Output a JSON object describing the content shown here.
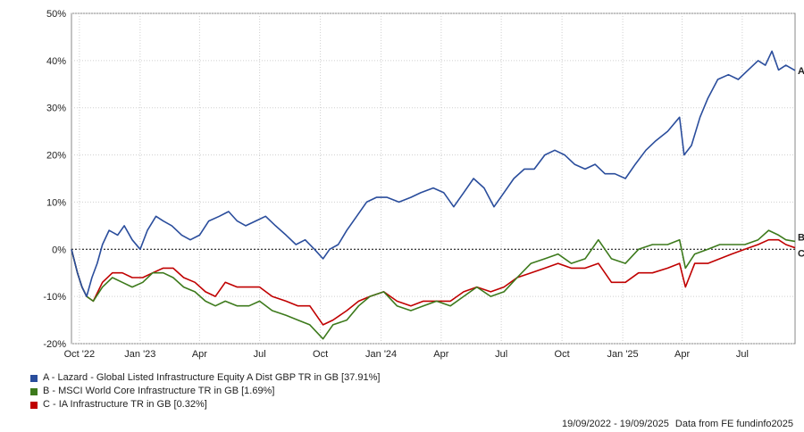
{
  "chart_data": {
    "type": "line",
    "ylim": [
      -20,
      50
    ],
    "yticks": [
      -20,
      -10,
      0,
      10,
      20,
      30,
      40,
      50
    ],
    "ytick_labels": [
      "-20%",
      "-10%",
      "0%",
      "10%",
      "20%",
      "30%",
      "40%",
      "50%"
    ],
    "xlim": [
      "2022-09-19",
      "2025-09-19"
    ],
    "xticks": [
      {
        "date": "2022-10-01",
        "label": "Oct '22"
      },
      {
        "date": "2023-01-01",
        "label": "Jan '23"
      },
      {
        "date": "2023-04-01",
        "label": "Apr"
      },
      {
        "date": "2023-07-01",
        "label": "Jul"
      },
      {
        "date": "2023-10-01",
        "label": "Oct"
      },
      {
        "date": "2024-01-01",
        "label": "Jan '24"
      },
      {
        "date": "2024-04-01",
        "label": "Apr"
      },
      {
        "date": "2024-07-01",
        "label": "Jul"
      },
      {
        "date": "2024-10-01",
        "label": "Oct"
      },
      {
        "date": "2025-01-01",
        "label": "Jan '25"
      },
      {
        "date": "2025-04-01",
        "label": "Apr"
      },
      {
        "date": "2025-07-01",
        "label": "Jul"
      }
    ],
    "grid": true,
    "zero_line": "dashed",
    "legend_position": "bottom-left",
    "series": [
      {
        "name": "A - Lazard - Global Listed Infrastructure Equity A Dist GBP TR in GB [37.91%]",
        "end_label": "A",
        "color": "#2a4d9c",
        "points": [
          [
            "2022-09-19",
            0
          ],
          [
            "2022-09-28",
            -5
          ],
          [
            "2022-10-05",
            -8
          ],
          [
            "2022-10-12",
            -10
          ],
          [
            "2022-10-20",
            -6
          ],
          [
            "2022-10-28",
            -3
          ],
          [
            "2022-11-05",
            1
          ],
          [
            "2022-11-15",
            4
          ],
          [
            "2022-11-28",
            3
          ],
          [
            "2022-12-08",
            5
          ],
          [
            "2022-12-20",
            2
          ],
          [
            "2023-01-01",
            0
          ],
          [
            "2023-01-12",
            4
          ],
          [
            "2023-01-25",
            7
          ],
          [
            "2023-02-05",
            6
          ],
          [
            "2023-02-18",
            5
          ],
          [
            "2023-03-05",
            3
          ],
          [
            "2023-03-18",
            2
          ],
          [
            "2023-04-01",
            3
          ],
          [
            "2023-04-15",
            6
          ],
          [
            "2023-05-01",
            7
          ],
          [
            "2023-05-15",
            8
          ],
          [
            "2023-05-28",
            6
          ],
          [
            "2023-06-10",
            5
          ],
          [
            "2023-06-25",
            6
          ],
          [
            "2023-07-10",
            7
          ],
          [
            "2023-07-25",
            5
          ],
          [
            "2023-08-10",
            3
          ],
          [
            "2023-08-25",
            1
          ],
          [
            "2023-09-08",
            2
          ],
          [
            "2023-09-22",
            0
          ],
          [
            "2023-10-05",
            -2
          ],
          [
            "2023-10-15",
            0
          ],
          [
            "2023-10-28",
            1
          ],
          [
            "2023-11-10",
            4
          ],
          [
            "2023-11-25",
            7
          ],
          [
            "2023-12-10",
            10
          ],
          [
            "2023-12-25",
            11
          ],
          [
            "2024-01-10",
            11
          ],
          [
            "2024-01-28",
            10
          ],
          [
            "2024-02-15",
            11
          ],
          [
            "2024-03-01",
            12
          ],
          [
            "2024-03-20",
            13
          ],
          [
            "2024-04-05",
            12
          ],
          [
            "2024-04-20",
            9
          ],
          [
            "2024-05-05",
            12
          ],
          [
            "2024-05-20",
            15
          ],
          [
            "2024-06-05",
            13
          ],
          [
            "2024-06-20",
            9
          ],
          [
            "2024-07-05",
            12
          ],
          [
            "2024-07-20",
            15
          ],
          [
            "2024-08-05",
            17
          ],
          [
            "2024-08-20",
            17
          ],
          [
            "2024-09-05",
            20
          ],
          [
            "2024-09-20",
            21
          ],
          [
            "2024-10-05",
            20
          ],
          [
            "2024-10-20",
            18
          ],
          [
            "2024-11-05",
            17
          ],
          [
            "2024-11-20",
            18
          ],
          [
            "2024-12-05",
            16
          ],
          [
            "2024-12-20",
            16
          ],
          [
            "2025-01-05",
            15
          ],
          [
            "2025-01-20",
            18
          ],
          [
            "2025-02-05",
            21
          ],
          [
            "2025-02-20",
            23
          ],
          [
            "2025-03-10",
            25
          ],
          [
            "2025-03-28",
            28
          ],
          [
            "2025-04-04",
            20
          ],
          [
            "2025-04-15",
            22
          ],
          [
            "2025-04-28",
            28
          ],
          [
            "2025-05-10",
            32
          ],
          [
            "2025-05-25",
            36
          ],
          [
            "2025-06-10",
            37
          ],
          [
            "2025-06-25",
            36
          ],
          [
            "2025-07-10",
            38
          ],
          [
            "2025-07-25",
            40
          ],
          [
            "2025-08-05",
            39
          ],
          [
            "2025-08-15",
            42
          ],
          [
            "2025-08-25",
            38
          ],
          [
            "2025-09-05",
            39
          ],
          [
            "2025-09-19",
            37.91
          ]
        ]
      },
      {
        "name": "B - MSCI World Core Infrastructure TR in GB [1.69%]",
        "end_label": "B",
        "color": "#3d7a1c",
        "points": [
          [
            "2022-09-19",
            0
          ],
          [
            "2022-09-28",
            -5
          ],
          [
            "2022-10-05",
            -8
          ],
          [
            "2022-10-12",
            -10
          ],
          [
            "2022-10-22",
            -11
          ],
          [
            "2022-11-05",
            -8
          ],
          [
            "2022-11-20",
            -6
          ],
          [
            "2022-12-05",
            -7
          ],
          [
            "2022-12-20",
            -8
          ],
          [
            "2023-01-05",
            -7
          ],
          [
            "2023-01-20",
            -5
          ],
          [
            "2023-02-05",
            -5
          ],
          [
            "2023-02-20",
            -6
          ],
          [
            "2023-03-08",
            -8
          ],
          [
            "2023-03-25",
            -9
          ],
          [
            "2023-04-10",
            -11
          ],
          [
            "2023-04-25",
            -12
          ],
          [
            "2023-05-10",
            -11
          ],
          [
            "2023-05-28",
            -12
          ],
          [
            "2023-06-15",
            -12
          ],
          [
            "2023-07-01",
            -11
          ],
          [
            "2023-07-20",
            -13
          ],
          [
            "2023-08-10",
            -14
          ],
          [
            "2023-08-28",
            -15
          ],
          [
            "2023-09-15",
            -16
          ],
          [
            "2023-10-05",
            -19
          ],
          [
            "2023-10-20",
            -16
          ],
          [
            "2023-11-10",
            -15
          ],
          [
            "2023-11-28",
            -12
          ],
          [
            "2023-12-15",
            -10
          ],
          [
            "2024-01-05",
            -9
          ],
          [
            "2024-01-25",
            -12
          ],
          [
            "2024-02-15",
            -13
          ],
          [
            "2024-03-05",
            -12
          ],
          [
            "2024-03-25",
            -11
          ],
          [
            "2024-04-15",
            -12
          ],
          [
            "2024-05-05",
            -10
          ],
          [
            "2024-05-25",
            -8
          ],
          [
            "2024-06-15",
            -10
          ],
          [
            "2024-07-05",
            -9
          ],
          [
            "2024-07-25",
            -6
          ],
          [
            "2024-08-15",
            -3
          ],
          [
            "2024-09-05",
            -2
          ],
          [
            "2024-09-25",
            -1
          ],
          [
            "2024-10-15",
            -3
          ],
          [
            "2024-11-05",
            -2
          ],
          [
            "2024-11-25",
            2
          ],
          [
            "2024-12-15",
            -2
          ],
          [
            "2025-01-05",
            -3
          ],
          [
            "2025-01-25",
            0
          ],
          [
            "2025-02-15",
            1
          ],
          [
            "2025-03-10",
            1
          ],
          [
            "2025-03-28",
            2
          ],
          [
            "2025-04-06",
            -4
          ],
          [
            "2025-04-20",
            -1
          ],
          [
            "2025-05-10",
            0
          ],
          [
            "2025-05-28",
            1
          ],
          [
            "2025-06-15",
            1
          ],
          [
            "2025-07-05",
            1
          ],
          [
            "2025-07-25",
            2
          ],
          [
            "2025-08-10",
            4
          ],
          [
            "2025-08-25",
            3
          ],
          [
            "2025-09-05",
            2
          ],
          [
            "2025-09-19",
            1.69
          ]
        ]
      },
      {
        "name": "C - IA Infrastructure TR in GB [0.32%]",
        "end_label": "C",
        "color": "#c00000",
        "points": [
          [
            "2022-09-19",
            0
          ],
          [
            "2022-09-28",
            -5
          ],
          [
            "2022-10-05",
            -8
          ],
          [
            "2022-10-12",
            -10
          ],
          [
            "2022-10-22",
            -11
          ],
          [
            "2022-11-05",
            -7
          ],
          [
            "2022-11-20",
            -5
          ],
          [
            "2022-12-05",
            -5
          ],
          [
            "2022-12-20",
            -6
          ],
          [
            "2023-01-05",
            -6
          ],
          [
            "2023-01-20",
            -5
          ],
          [
            "2023-02-05",
            -4
          ],
          [
            "2023-02-20",
            -4
          ],
          [
            "2023-03-08",
            -6
          ],
          [
            "2023-03-25",
            -7
          ],
          [
            "2023-04-10",
            -9
          ],
          [
            "2023-04-25",
            -10
          ],
          [
            "2023-05-10",
            -7
          ],
          [
            "2023-05-28",
            -8
          ],
          [
            "2023-06-15",
            -8
          ],
          [
            "2023-07-01",
            -8
          ],
          [
            "2023-07-20",
            -10
          ],
          [
            "2023-08-10",
            -11
          ],
          [
            "2023-08-28",
            -12
          ],
          [
            "2023-09-15",
            -12
          ],
          [
            "2023-10-05",
            -16
          ],
          [
            "2023-10-20",
            -15
          ],
          [
            "2023-11-10",
            -13
          ],
          [
            "2023-11-28",
            -11
          ],
          [
            "2023-12-15",
            -10
          ],
          [
            "2024-01-05",
            -9
          ],
          [
            "2024-01-25",
            -11
          ],
          [
            "2024-02-15",
            -12
          ],
          [
            "2024-03-05",
            -11
          ],
          [
            "2024-03-25",
            -11
          ],
          [
            "2024-04-15",
            -11
          ],
          [
            "2024-05-05",
            -9
          ],
          [
            "2024-05-25",
            -8
          ],
          [
            "2024-06-15",
            -9
          ],
          [
            "2024-07-05",
            -8
          ],
          [
            "2024-07-25",
            -6
          ],
          [
            "2024-08-15",
            -5
          ],
          [
            "2024-09-05",
            -4
          ],
          [
            "2024-09-25",
            -3
          ],
          [
            "2024-10-15",
            -4
          ],
          [
            "2024-11-05",
            -4
          ],
          [
            "2024-11-25",
            -3
          ],
          [
            "2024-12-15",
            -7
          ],
          [
            "2025-01-05",
            -7
          ],
          [
            "2025-01-25",
            -5
          ],
          [
            "2025-02-15",
            -5
          ],
          [
            "2025-03-10",
            -4
          ],
          [
            "2025-03-28",
            -3
          ],
          [
            "2025-04-06",
            -8
          ],
          [
            "2025-04-20",
            -3
          ],
          [
            "2025-05-10",
            -3
          ],
          [
            "2025-05-28",
            -2
          ],
          [
            "2025-06-15",
            -1
          ],
          [
            "2025-07-05",
            0
          ],
          [
            "2025-07-25",
            1
          ],
          [
            "2025-08-10",
            2
          ],
          [
            "2025-08-25",
            2
          ],
          [
            "2025-09-05",
            1
          ],
          [
            "2025-09-19",
            0.32
          ]
        ]
      }
    ]
  },
  "legend": [
    {
      "label": "A - Lazard - Global Listed Infrastructure Equity A Dist GBP TR in GB [37.91%]",
      "color": "#2a4d9c"
    },
    {
      "label": "B - MSCI World Core Infrastructure TR in GB [1.69%]",
      "color": "#3d7a1c"
    },
    {
      "label": "C - IA Infrastructure TR in GB [0.32%]",
      "color": "#c00000"
    }
  ],
  "footer": {
    "date_range": "19/09/2022 - 19/09/2025",
    "source": "Data from FE fundinfo2025"
  }
}
